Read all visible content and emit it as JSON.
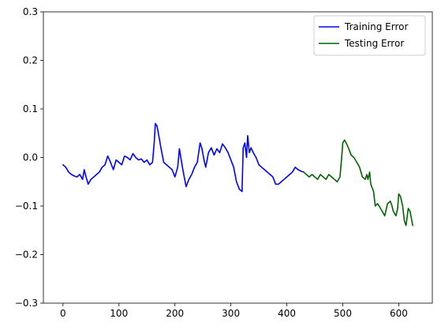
{
  "chart_data": {
    "type": "line",
    "title": "",
    "xlabel": "",
    "ylabel": "",
    "xlim": [
      -35,
      660
    ],
    "ylim": [
      -0.3,
      0.3
    ],
    "xticks": [
      0,
      100,
      200,
      300,
      400,
      500,
      600
    ],
    "yticks": [
      -0.3,
      -0.2,
      -0.1,
      0.0,
      0.1,
      0.2,
      0.3
    ],
    "xtick_labels": [
      "0",
      "100",
      "200",
      "300",
      "400",
      "500",
      "600"
    ],
    "ytick_labels": [
      "−0.3",
      "−0.2",
      "−0.1",
      "0.0",
      "0.1",
      "0.2",
      "0.3"
    ],
    "grid": false,
    "legend_position": "top-right",
    "series": [
      {
        "name": "Training Error",
        "color": "#0000ff",
        "x": [
          0,
          5,
          10,
          15,
          20,
          25,
          30,
          35,
          38,
          40,
          45,
          50,
          55,
          60,
          65,
          70,
          75,
          80,
          85,
          90,
          95,
          100,
          105,
          110,
          115,
          120,
          125,
          130,
          135,
          140,
          145,
          150,
          155,
          160,
          163,
          165,
          168,
          172,
          175,
          180,
          185,
          190,
          195,
          200,
          205,
          208,
          212,
          215,
          220,
          225,
          230,
          235,
          240,
          245,
          248,
          252,
          255,
          260,
          265,
          270,
          275,
          280,
          285,
          290,
          295,
          300,
          305,
          310,
          315,
          320,
          322,
          325,
          328,
          330,
          333,
          336,
          340,
          345,
          350,
          355,
          360,
          365,
          370,
          375,
          380,
          385,
          390,
          395,
          400,
          405,
          410,
          415,
          420,
          425,
          430
        ],
        "values": [
          -0.015,
          -0.02,
          -0.03,
          -0.035,
          -0.038,
          -0.04,
          -0.035,
          -0.045,
          -0.025,
          -0.035,
          -0.055,
          -0.045,
          -0.04,
          -0.035,
          -0.03,
          -0.02,
          -0.015,
          0.003,
          -0.01,
          -0.025,
          -0.005,
          -0.01,
          -0.015,
          0.003,
          0.0,
          -0.005,
          0.008,
          0.0,
          -0.005,
          -0.003,
          -0.01,
          -0.005,
          -0.015,
          -0.01,
          0.03,
          0.07,
          0.065,
          0.04,
          0.02,
          -0.01,
          -0.015,
          -0.02,
          -0.025,
          -0.04,
          -0.02,
          0.018,
          -0.01,
          -0.03,
          -0.06,
          -0.045,
          -0.035,
          -0.02,
          -0.01,
          0.03,
          0.02,
          -0.005,
          -0.02,
          0.01,
          0.02,
          0.005,
          0.018,
          0.01,
          0.028,
          0.02,
          0.01,
          -0.005,
          -0.02,
          -0.05,
          -0.065,
          -0.07,
          0.02,
          0.03,
          0.0,
          0.045,
          0.01,
          0.02,
          0.01,
          0.0,
          -0.015,
          -0.02,
          -0.025,
          -0.03,
          -0.035,
          -0.04,
          -0.055,
          -0.055,
          -0.05,
          -0.045,
          -0.04,
          -0.035,
          -0.03,
          -0.02,
          -0.025,
          -0.028,
          -0.03
        ]
      },
      {
        "name": "Testing Error",
        "color": "#006400",
        "x": [
          430,
          435,
          440,
          445,
          450,
          455,
          460,
          465,
          470,
          475,
          480,
          485,
          490,
          495,
          498,
          500,
          503,
          506,
          510,
          515,
          520,
          525,
          530,
          535,
          540,
          543,
          545,
          548,
          550,
          555,
          558,
          562,
          565,
          570,
          575,
          580,
          585,
          588,
          590,
          595,
          598,
          600,
          603,
          607,
          610,
          613,
          617,
          620,
          625
        ],
        "values": [
          -0.03,
          -0.035,
          -0.04,
          -0.035,
          -0.04,
          -0.045,
          -0.035,
          -0.04,
          -0.045,
          -0.035,
          -0.04,
          -0.045,
          -0.05,
          -0.04,
          0.0,
          0.03,
          0.036,
          0.03,
          0.02,
          0.005,
          0.0,
          -0.01,
          -0.02,
          -0.04,
          -0.045,
          -0.035,
          -0.045,
          -0.03,
          -0.055,
          -0.07,
          -0.1,
          -0.095,
          -0.1,
          -0.11,
          -0.12,
          -0.095,
          -0.09,
          -0.1,
          -0.11,
          -0.12,
          -0.105,
          -0.075,
          -0.08,
          -0.1,
          -0.13,
          -0.14,
          -0.105,
          -0.11,
          -0.14
        ]
      }
    ]
  }
}
